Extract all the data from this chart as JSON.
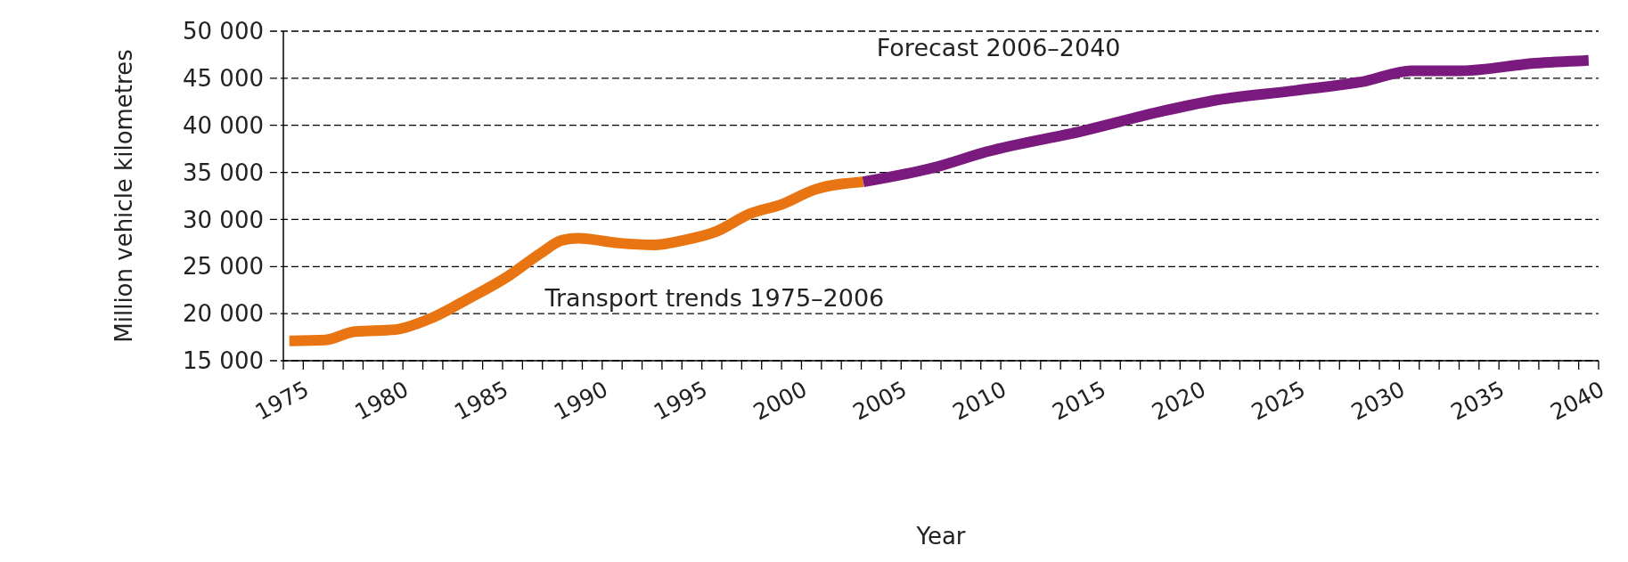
{
  "chart_data": {
    "type": "line",
    "xlabel": "Year",
    "ylabel": "Million vehicle kilometres",
    "xlim": [
      1974,
      2040
    ],
    "xticks": [
      1975,
      1980,
      1985,
      1990,
      1995,
      2000,
      2005,
      2010,
      2015,
      2020,
      2025,
      2030,
      2035,
      2040
    ],
    "ylim": [
      15000,
      50000
    ],
    "yticks": [
      {
        "value": 15000,
        "label": "15 000"
      },
      {
        "value": 20000,
        "label": "20 000"
      },
      {
        "value": 25000,
        "label": "25 000"
      },
      {
        "value": 30000,
        "label": "30 000"
      },
      {
        "value": 35000,
        "label": "35 000"
      },
      {
        "value": 40000,
        "label": "40 000"
      },
      {
        "value": 45000,
        "label": "45 000"
      },
      {
        "value": 50000,
        "label": "50 000"
      }
    ],
    "grid": "y",
    "line_style": "solid",
    "marker": "none",
    "series": [
      {
        "name": "Transport trends 1975–2006",
        "color": "#e87511",
        "x": [
          1974.3,
          1976.1,
          1977.6,
          1979.6,
          1981.4,
          1983.3,
          1985.3,
          1986.9,
          1988,
          1988.8,
          1990.8,
          1992.6,
          1994.1,
          1995.7,
          1997.4,
          1999,
          2000.7,
          2003.1
        ],
        "values": [
          17100,
          17200,
          18100,
          18300,
          19500,
          21600,
          24000,
          26400,
          27800,
          28000,
          27500,
          27300,
          27800,
          28700,
          30600,
          31600,
          33200,
          34000
        ]
      },
      {
        "name": "Forecast 2006–2040",
        "color": "#7b1a7e",
        "x": [
          2003.1,
          2006.8,
          2009.3,
          2014.1,
          2018.1,
          2020.6,
          2024.8,
          2028.3,
          2030.6,
          2033.1,
          2036.8,
          2039.5
        ],
        "values": [
          34000,
          35600,
          37200,
          39400,
          41500,
          42600,
          43700,
          44700,
          45800,
          45800,
          46600,
          46900
        ]
      }
    ]
  }
}
